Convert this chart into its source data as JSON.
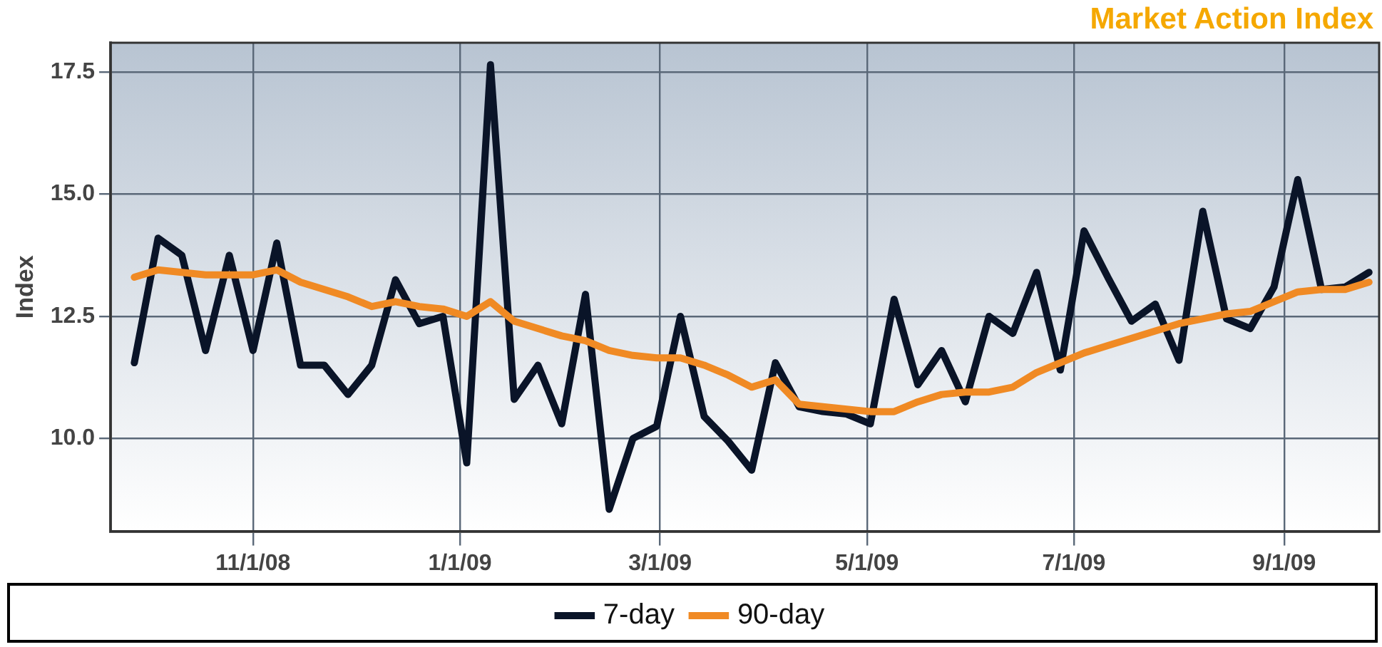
{
  "chart_data": {
    "type": "line",
    "title": "Market Action Index",
    "ylabel": "Index",
    "x": [
      "2008-09-27",
      "2008-10-04",
      "2008-10-11",
      "2008-10-18",
      "2008-10-25",
      "2008-11-01",
      "2008-11-08",
      "2008-11-15",
      "2008-11-22",
      "2008-11-29",
      "2008-12-06",
      "2008-12-13",
      "2008-12-20",
      "2008-12-27",
      "2009-01-03",
      "2009-01-10",
      "2009-01-17",
      "2009-01-24",
      "2009-01-31",
      "2009-02-07",
      "2009-02-14",
      "2009-02-21",
      "2009-02-28",
      "2009-03-07",
      "2009-03-14",
      "2009-03-21",
      "2009-03-28",
      "2009-04-04",
      "2009-04-11",
      "2009-04-18",
      "2009-04-25",
      "2009-05-02",
      "2009-05-09",
      "2009-05-16",
      "2009-05-23",
      "2009-05-30",
      "2009-06-06",
      "2009-06-13",
      "2009-06-20",
      "2009-06-27",
      "2009-07-04",
      "2009-07-11",
      "2009-07-18",
      "2009-07-25",
      "2009-08-01",
      "2009-08-08",
      "2009-08-15",
      "2009-08-22",
      "2009-08-29",
      "2009-09-05",
      "2009-09-12",
      "2009-09-19",
      "2009-09-26"
    ],
    "series": [
      {
        "name": "7-day",
        "color": "#0a1428",
        "values": [
          11.55,
          14.1,
          13.75,
          11.8,
          13.75,
          11.8,
          14.0,
          11.5,
          11.5,
          10.9,
          11.5,
          13.25,
          12.35,
          12.5,
          9.5,
          17.65,
          10.8,
          11.5,
          10.3,
          12.95,
          8.55,
          10.0,
          10.25,
          12.5,
          10.45,
          9.95,
          9.35,
          11.55,
          10.65,
          10.55,
          10.5,
          10.3,
          12.85,
          11.1,
          11.8,
          10.75,
          12.5,
          12.15,
          13.4,
          11.4,
          14.25,
          13.3,
          12.4,
          12.75,
          11.6,
          14.65,
          12.45,
          12.25,
          13.1,
          15.3,
          13.05,
          13.1,
          13.4
        ]
      },
      {
        "name": "90-day",
        "color": "#f08a24",
        "values": [
          13.3,
          13.45,
          13.4,
          13.35,
          13.35,
          13.35,
          13.45,
          13.2,
          13.05,
          12.9,
          12.7,
          12.8,
          12.7,
          12.65,
          12.5,
          12.8,
          12.4,
          12.25,
          12.1,
          12.0,
          11.8,
          11.7,
          11.65,
          11.65,
          11.5,
          11.3,
          11.05,
          11.2,
          10.7,
          10.65,
          10.6,
          10.55,
          10.55,
          10.75,
          10.9,
          10.95,
          10.95,
          11.05,
          11.35,
          11.55,
          11.75,
          11.9,
          12.05,
          12.2,
          12.35,
          12.45,
          12.55,
          12.6,
          12.8,
          13.0,
          13.05,
          13.05,
          13.2
        ]
      }
    ],
    "xlim": [
      "2008-09-20",
      "2009-09-29"
    ],
    "xticks": [
      {
        "value": "2008-11-01",
        "label": "11/1/08"
      },
      {
        "value": "2009-01-01",
        "label": "1/1/09"
      },
      {
        "value": "2009-03-01",
        "label": "3/1/09"
      },
      {
        "value": "2009-05-01",
        "label": "5/1/09"
      },
      {
        "value": "2009-07-01",
        "label": "7/1/09"
      },
      {
        "value": "2009-09-01",
        "label": "9/1/09"
      }
    ],
    "ylim": [
      8.1,
      18.1
    ],
    "yticks": [
      {
        "value": 10,
        "label": "10.0"
      },
      {
        "value": 12.5,
        "label": "12.5"
      },
      {
        "value": 15,
        "label": "15.0"
      },
      {
        "value": 17.5,
        "label": "17.5"
      }
    ],
    "grid": true,
    "legend": "bottom",
    "marker": "none",
    "line_style": "solid"
  }
}
